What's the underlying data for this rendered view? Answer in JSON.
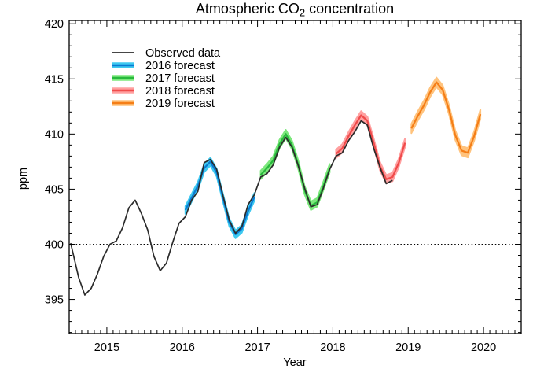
{
  "title": {
    "prefix": "Atmospheric CO",
    "subscript": "2",
    "suffix": " concentration"
  },
  "axes": {
    "x": {
      "label": "Year",
      "major_ticks": [
        2015,
        2016,
        2017,
        2018,
        2019,
        2020
      ],
      "minor_interval_years": 0.0833333,
      "range": [
        2014.5,
        2020.5
      ]
    },
    "y": {
      "label": "ppm",
      "major_ticks": [
        395,
        400,
        405,
        410,
        415,
        420
      ],
      "minor_interval": 1,
      "range": [
        391.9,
        420.3
      ]
    }
  },
  "reference_line": {
    "value": 400,
    "style": "dotted",
    "color": "#000000"
  },
  "legend": {
    "position": "upper-left",
    "items": [
      {
        "label": "Observed data",
        "line_color": "#2b2b2b",
        "band_color": null
      },
      {
        "label": "2016 forecast",
        "line_color": "#0a7ad2",
        "band_color": "#3ec9f0"
      },
      {
        "label": "2017 forecast",
        "line_color": "#28b93c",
        "band_color": "#7ce87c"
      },
      {
        "label": "2018 forecast",
        "line_color": "#f04b4b",
        "band_color": "#ffa0a0"
      },
      {
        "label": "2019 forecast",
        "line_color": "#f57e17",
        "band_color": "#ffc37d"
      }
    ]
  },
  "chart_data": {
    "type": "line",
    "title": "Atmospheric CO2 concentration",
    "xlabel": "Year",
    "ylabel": "ppm",
    "xlim": [
      2014.5,
      2020.5
    ],
    "ylim": [
      391.9,
      420.3
    ],
    "grid": false,
    "reference_value": 400,
    "series": [
      {
        "name": "Observed data",
        "kind": "line",
        "color": "#2b2b2b",
        "width": 1.7,
        "x": [
          2014.52,
          2014.625,
          2014.708,
          2014.792,
          2014.875,
          2014.958,
          2015.042,
          2015.125,
          2015.208,
          2015.292,
          2015.375,
          2015.458,
          2015.542,
          2015.625,
          2015.708,
          2015.792,
          2015.875,
          2015.958,
          2016.042,
          2016.125,
          2016.208,
          2016.292,
          2016.375,
          2016.458,
          2016.542,
          2016.625,
          2016.708,
          2016.792,
          2016.875,
          2016.958,
          2017.042,
          2017.125,
          2017.208,
          2017.292,
          2017.375,
          2017.458,
          2017.542,
          2017.625,
          2017.708,
          2017.792,
          2017.875,
          2017.958,
          2018.042,
          2018.125,
          2018.208,
          2018.292,
          2018.375,
          2018.458,
          2018.542,
          2018.625,
          2018.708,
          2018.792
        ],
        "y": [
          400.1,
          397.0,
          395.4,
          396.0,
          397.3,
          398.9,
          400.0,
          400.3,
          401.5,
          403.3,
          404.0,
          402.8,
          401.3,
          398.9,
          397.6,
          398.3,
          400.2,
          401.9,
          402.5,
          404.0,
          404.8,
          407.4,
          407.7,
          406.8,
          404.4,
          402.2,
          401.0,
          401.6,
          403.6,
          404.5,
          406.1,
          406.4,
          407.2,
          408.8,
          409.7,
          408.8,
          407.1,
          405.1,
          403.4,
          403.6,
          405.1,
          406.8,
          408.0,
          408.3,
          409.4,
          410.2,
          411.2,
          410.8,
          408.7,
          407.0,
          405.5,
          405.8
        ]
      },
      {
        "name": "2016 forecast",
        "kind": "forecast",
        "line_color": "#0a7ad2",
        "band_color": "#3ec9f0",
        "band_halfwidth_ppm": 0.35,
        "width": 2.2,
        "x": [
          2016.042,
          2016.125,
          2016.208,
          2016.292,
          2016.375,
          2016.458,
          2016.542,
          2016.625,
          2016.708,
          2016.792,
          2016.875,
          2016.958
        ],
        "y": [
          403.1,
          404.2,
          405.3,
          406.9,
          407.5,
          406.5,
          404.2,
          402.0,
          400.9,
          401.4,
          403.0,
          404.3
        ]
      },
      {
        "name": "2017 forecast",
        "kind": "forecast",
        "line_color": "#28b93c",
        "band_color": "#7ce87c",
        "band_halfwidth_ppm": 0.38,
        "width": 2.2,
        "x": [
          2017.042,
          2017.125,
          2017.208,
          2017.292,
          2017.375,
          2017.458,
          2017.542,
          2017.625,
          2017.708,
          2017.792,
          2017.875,
          2017.958
        ],
        "y": [
          406.3,
          406.9,
          407.6,
          409.1,
          410.0,
          409.0,
          407.2,
          404.9,
          403.5,
          403.8,
          405.3,
          406.9
        ]
      },
      {
        "name": "2018 forecast",
        "kind": "forecast",
        "line_color": "#f04b4b",
        "band_color": "#ffa0a0",
        "band_halfwidth_ppm": 0.38,
        "width": 2.2,
        "x": [
          2018.042,
          2018.125,
          2018.208,
          2018.292,
          2018.375,
          2018.458,
          2018.542,
          2018.625,
          2018.708,
          2018.792,
          2018.875,
          2018.958
        ],
        "y": [
          408.2,
          408.7,
          409.8,
          410.8,
          411.7,
          411.2,
          409.2,
          407.1,
          405.9,
          406.1,
          407.4,
          409.2
        ]
      },
      {
        "name": "2019 forecast",
        "kind": "forecast",
        "line_color": "#f57e17",
        "band_color": "#ffc37d",
        "band_halfwidth_ppm": 0.42,
        "width": 2.2,
        "x": [
          2019.042,
          2019.125,
          2019.208,
          2019.292,
          2019.375,
          2019.458,
          2019.542,
          2019.625,
          2019.708,
          2019.792,
          2019.875,
          2019.958
        ],
        "y": [
          410.5,
          411.6,
          412.6,
          413.8,
          414.7,
          414.0,
          412.2,
          409.9,
          408.5,
          408.3,
          409.8,
          411.8
        ]
      }
    ]
  },
  "colors": {
    "background": "#ffffff",
    "axis": "#000000",
    "text": "#000000"
  }
}
